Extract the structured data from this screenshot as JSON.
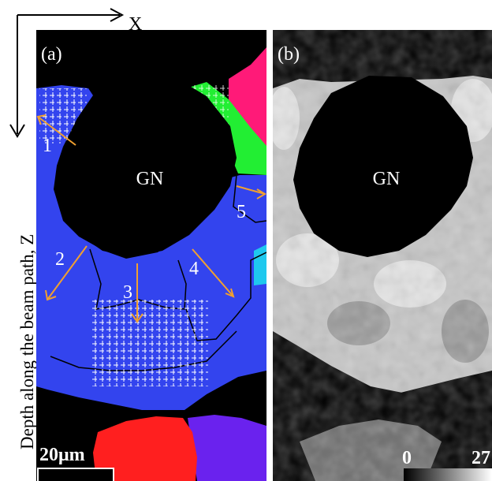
{
  "axes": {
    "x_label": "X",
    "z_label": "Depth along the beam path, Z"
  },
  "panel_a": {
    "label": "(a)",
    "center_label": "GN",
    "scale_bar": "20μm",
    "grain_labels": [
      "1",
      "2",
      "3",
      "4",
      "5"
    ],
    "colors": {
      "blue_grain": "#3344ee",
      "red_grain": "#ff1f1f",
      "magenta_grain": "#ff1a78",
      "green_grain": "#22ee33",
      "cyan_grain": "#1fc8ee",
      "violet_grain": "#6a22ee",
      "arrow": "#f0a030"
    }
  },
  "panel_b": {
    "label": "(b)",
    "center_label": "GN",
    "colorbar_min": "0",
    "colorbar_max": "27"
  }
}
